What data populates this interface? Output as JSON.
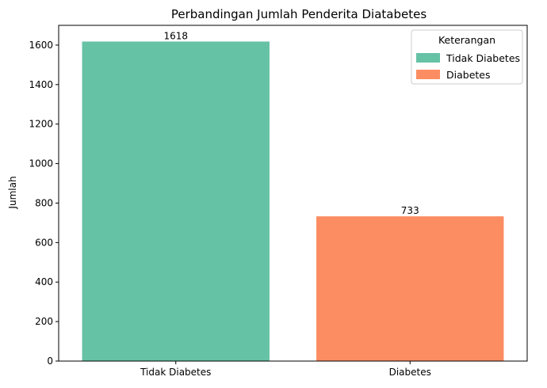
{
  "chart_data": {
    "type": "bar",
    "title": "Perbandingan Jumlah Penderita Diatabetes",
    "xlabel": "",
    "ylabel": "Jumlah",
    "categories": [
      "Tidak Diabetes",
      "Diabetes"
    ],
    "values": [
      1618,
      733
    ],
    "data_labels": [
      "1618",
      "733"
    ],
    "colors": [
      "#66c2a5",
      "#fc8d62"
    ],
    "ylim": [
      0,
      1700
    ],
    "yticks": [
      0,
      200,
      400,
      600,
      800,
      1000,
      1200,
      1400,
      1600
    ],
    "ytick_labels": [
      "0",
      "200",
      "400",
      "600",
      "800",
      "1000",
      "1200",
      "1400",
      "1600"
    ],
    "grid": false,
    "legend": {
      "title": "Keterangan",
      "placement": "top-right",
      "entries": [
        "Tidak Diabetes",
        "Diabetes"
      ]
    }
  }
}
